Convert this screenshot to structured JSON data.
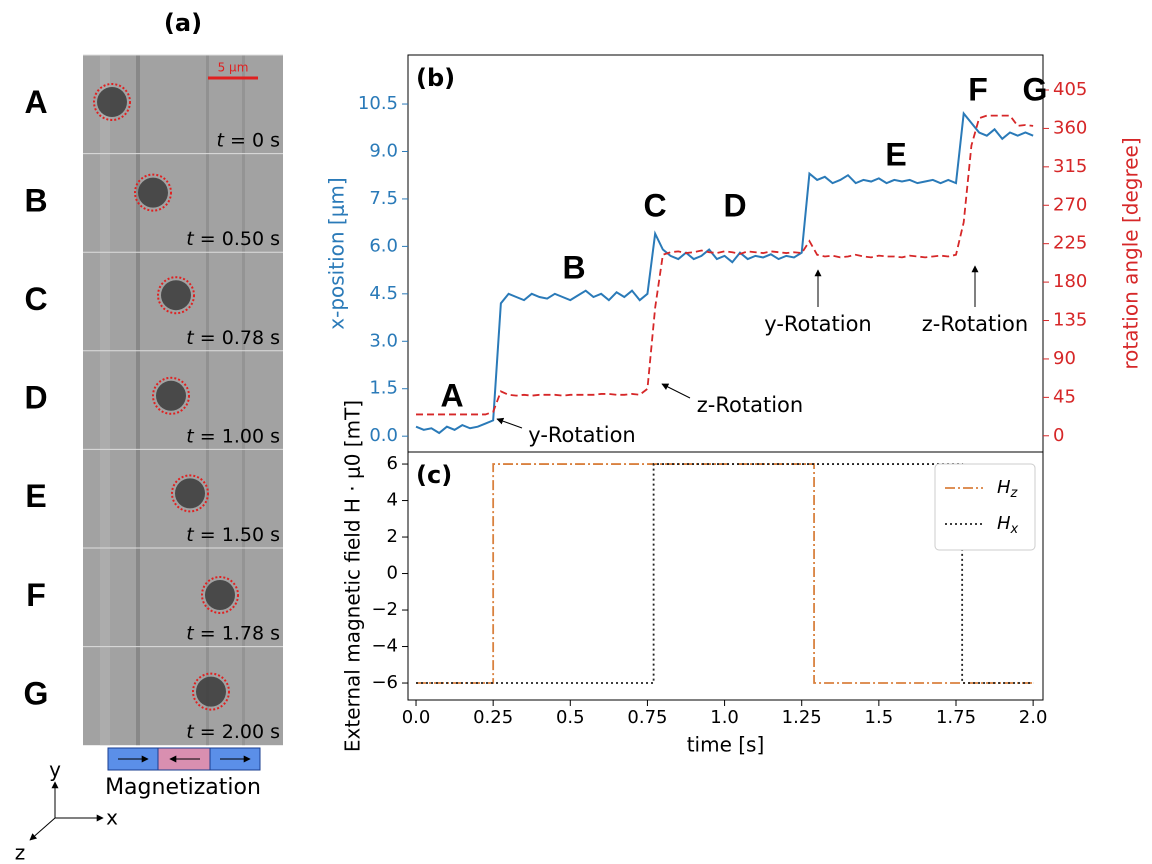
{
  "panel_a": {
    "label": "(a)",
    "scale_bar": "5 μm",
    "rows": [
      {
        "label": "A",
        "time": "t = 0 s"
      },
      {
        "label": "B",
        "time": "t = 0.50 s"
      },
      {
        "label": "C",
        "time": "t = 0.78 s"
      },
      {
        "label": "D",
        "time": "t = 1.00 s"
      },
      {
        "label": "E",
        "time": "t = 1.50 s"
      },
      {
        "label": "F",
        "time": "t = 1.78 s"
      },
      {
        "label": "G",
        "time": "t = 2.00 s"
      }
    ],
    "magnetization": "Magnetization",
    "axes": {
      "x": "x",
      "y": "y",
      "z": "z"
    }
  },
  "chart_data": [
    {
      "type": "line",
      "label": "(b)",
      "ylabel": "x-position [μm]",
      "ycolor": "#2a7ab8",
      "y2label": "rotation angle [degree]",
      "y2color": "#d62728",
      "xlim": [
        -0.026,
        2.032
      ],
      "ylim": [
        -0.5,
        12.05
      ],
      "y2lim": [
        -19,
        446
      ],
      "yticks": [
        {
          "value": 0,
          "label": "0.0"
        },
        1.5,
        {
          "value": 3,
          "label": "3.0"
        },
        4.5,
        {
          "value": 6,
          "label": "6.0"
        },
        7.5,
        {
          "value": 9,
          "label": "9.0"
        },
        10.5
      ],
      "y2ticks": [
        0,
        45,
        90,
        135,
        180,
        225,
        270,
        315,
        360,
        405
      ],
      "x": [
        0,
        0.025,
        0.05,
        0.075,
        0.1,
        0.125,
        0.15,
        0.175,
        0.2,
        0.225,
        0.25,
        0.275,
        0.3,
        0.325,
        0.35,
        0.375,
        0.4,
        0.425,
        0.45,
        0.475,
        0.5,
        0.525,
        0.55,
        0.575,
        0.6,
        0.625,
        0.65,
        0.675,
        0.7,
        0.725,
        0.75,
        0.775,
        0.8,
        0.825,
        0.85,
        0.875,
        0.9,
        0.925,
        0.95,
        0.975,
        1,
        1.025,
        1.05,
        1.075,
        1.1,
        1.125,
        1.15,
        1.175,
        1.2,
        1.225,
        1.25,
        1.275,
        1.3,
        1.325,
        1.35,
        1.375,
        1.4,
        1.425,
        1.45,
        1.475,
        1.5,
        1.525,
        1.55,
        1.575,
        1.6,
        1.625,
        1.65,
        1.675,
        1.7,
        1.725,
        1.75,
        1.775,
        1.8,
        1.825,
        1.85,
        1.875,
        1.9,
        1.925,
        1.95,
        1.975,
        2
      ],
      "series": [
        {
          "color": "#2a7ab8",
          "linestyle": "solid",
          "values": [
            0.3,
            0.2,
            0.25,
            0.1,
            0.3,
            0.2,
            0.35,
            0.25,
            0.3,
            0.4,
            0.5,
            4.2,
            4.5,
            4.4,
            4.3,
            4.5,
            4.4,
            4.35,
            4.5,
            4.4,
            4.3,
            4.45,
            4.6,
            4.4,
            4.5,
            4.3,
            4.55,
            4.4,
            4.6,
            4.3,
            4.5,
            6.4,
            5.9,
            5.7,
            5.6,
            5.8,
            5.6,
            5.7,
            5.9,
            5.6,
            5.7,
            5.5,
            5.8,
            5.6,
            5.7,
            5.65,
            5.75,
            5.6,
            5.7,
            5.65,
            5.8,
            8.3,
            8.1,
            8.2,
            8.0,
            8.1,
            8.25,
            8.0,
            8.1,
            8.05,
            8.15,
            8.0,
            8.1,
            8.05,
            8.1,
            8.0,
            8.05,
            8.1,
            8.0,
            8.1,
            8.0,
            10.2,
            9.9,
            9.6,
            9.5,
            9.7,
            9.4,
            9.6,
            9.5,
            9.6,
            9.5
          ]
        },
        {
          "color": "#d62728",
          "linestyle": "dashed",
          "axis": "y2",
          "values": [
            25,
            25,
            25,
            25,
            25,
            25,
            25,
            25,
            25,
            25,
            28,
            52,
            48,
            47,
            48,
            47,
            48,
            48,
            48,
            47,
            48,
            48,
            48,
            48,
            49,
            49,
            48,
            48,
            49,
            48,
            55,
            150,
            212,
            215,
            216,
            214,
            215,
            217,
            215,
            214,
            216,
            215,
            213,
            216,
            215,
            214,
            216,
            215,
            214,
            215,
            214,
            228,
            212,
            210,
            211,
            209,
            210,
            212,
            210,
            209,
            211,
            210,
            210,
            209,
            211,
            210,
            209,
            210,
            211,
            210,
            212,
            250,
            340,
            372,
            375,
            375,
            375,
            375,
            363,
            364,
            363
          ]
        }
      ],
      "annotations": [
        "A",
        "B",
        "C",
        "D",
        "E",
        "F",
        "G",
        "y-Rotation",
        "z-Rotation",
        "y-Rotation",
        "z-Rotation"
      ]
    },
    {
      "type": "line",
      "label": "(c)",
      "xlabel": "time [s]",
      "ylabel": "External magnetic field H · μ0 [mT]",
      "xlim": [
        -0.026,
        2.032
      ],
      "ylim": [
        -6.93,
        6.66
      ],
      "xticks": [
        {
          "value": 0,
          "label": "0.0"
        },
        0.25,
        0.5,
        0.75,
        {
          "value": 1,
          "label": "1.0"
        },
        1.25,
        1.5,
        1.75,
        {
          "value": 2,
          "label": "2.0"
        }
      ],
      "yticks": [
        {
          "value": -6,
          "label": "−6"
        },
        {
          "value": -4,
          "label": "−4"
        },
        {
          "value": -2,
          "label": "−2"
        },
        0,
        2,
        4,
        6
      ],
      "legend": "upper right",
      "series": [
        {
          "name": "Hz",
          "color": "#d9813f",
          "linestyle": "dashdot",
          "x": [
            0,
            0.25,
            0.25,
            1.29,
            1.29,
            2.0
          ],
          "values": [
            -6,
            -6,
            6,
            6,
            -6,
            -6
          ]
        },
        {
          "name": "Hx",
          "color": "#222222",
          "linestyle": "dotted",
          "x": [
            0,
            0.77,
            0.77,
            1.77,
            1.77,
            2.0
          ],
          "values": [
            -6,
            -6,
            6,
            6,
            -6,
            -6
          ]
        }
      ]
    }
  ]
}
